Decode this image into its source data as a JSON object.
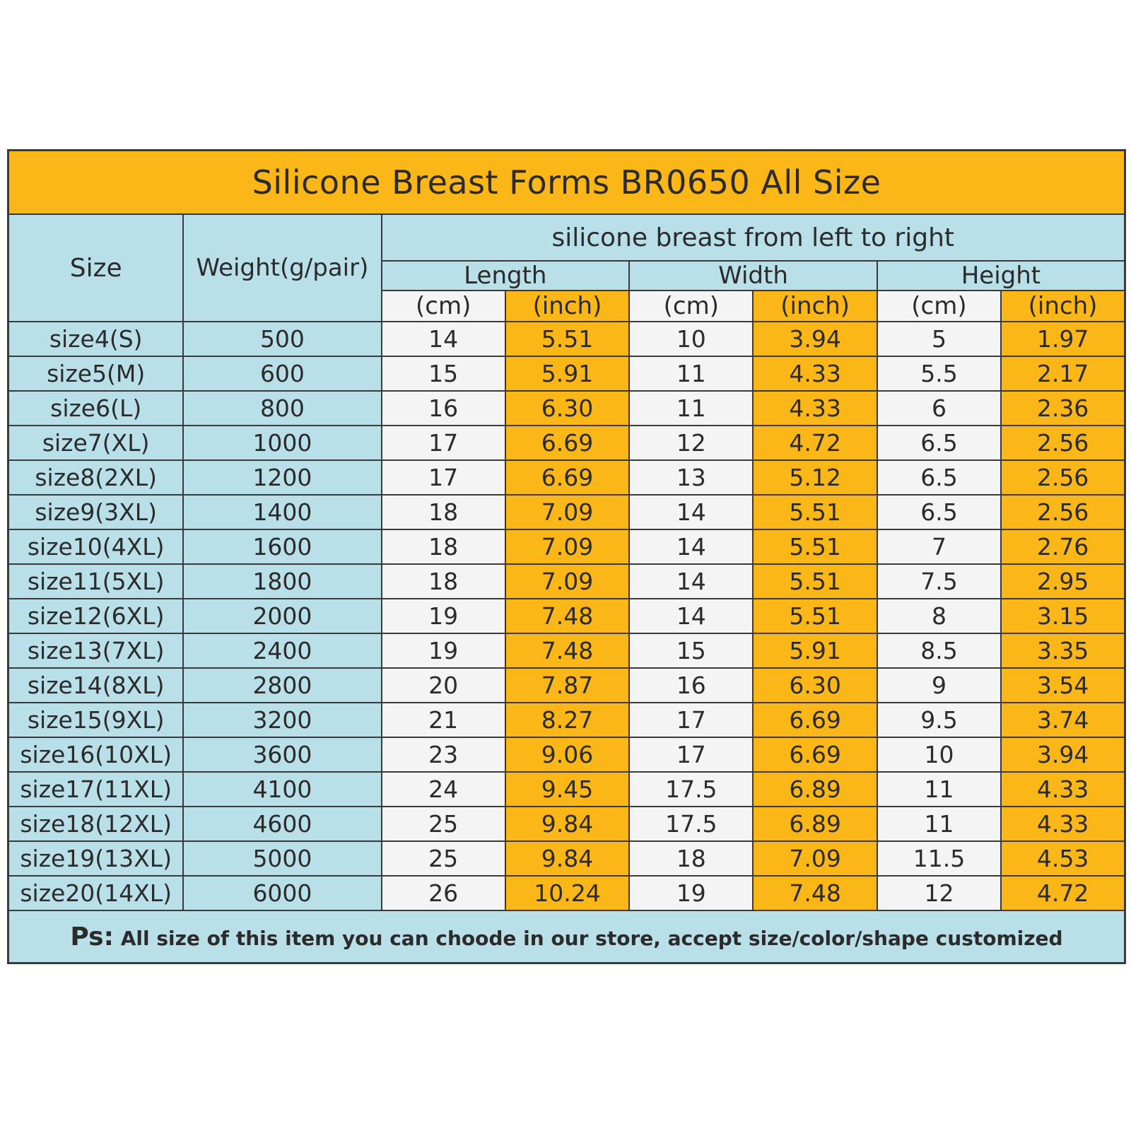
{
  "colors": {
    "title_bg": "#fbb717",
    "header_bg": "#b9dfe9",
    "size_col_bg": "#b9dfe9",
    "cm_bg": "#f4f4f4",
    "inch_bg": "#fbb717",
    "border": "#3a3a3a",
    "note_bg": "#b9dfe9"
  },
  "table": {
    "title": "Silicone Breast Forms BR0650 All Size",
    "header": {
      "size": "Size",
      "weight": "Weight(g/pair)",
      "group": "silicone breast from left to right",
      "dimensions": [
        "Length",
        "Width",
        "Height"
      ],
      "units": [
        "(cm)",
        "(inch)",
        "(cm)",
        "(inch)",
        "(cm)",
        "(inch)"
      ]
    },
    "rows": [
      [
        "size4(S)",
        "500",
        "14",
        "5.51",
        "10",
        "3.94",
        "5",
        "1.97"
      ],
      [
        "size5(M)",
        "600",
        "15",
        "5.91",
        "11",
        "4.33",
        "5.5",
        "2.17"
      ],
      [
        "size6(L)",
        "800",
        "16",
        "6.30",
        "11",
        "4.33",
        "6",
        "2.36"
      ],
      [
        "size7(XL)",
        "1000",
        "17",
        "6.69",
        "12",
        "4.72",
        "6.5",
        "2.56"
      ],
      [
        "size8(2XL)",
        "1200",
        "17",
        "6.69",
        "13",
        "5.12",
        "6.5",
        "2.56"
      ],
      [
        "size9(3XL)",
        "1400",
        "18",
        "7.09",
        "14",
        "5.51",
        "6.5",
        "2.56"
      ],
      [
        "size10(4XL)",
        "1600",
        "18",
        "7.09",
        "14",
        "5.51",
        "7",
        "2.76"
      ],
      [
        "size11(5XL)",
        "1800",
        "18",
        "7.09",
        "14",
        "5.51",
        "7.5",
        "2.95"
      ],
      [
        "size12(6XL)",
        "2000",
        "19",
        "7.48",
        "14",
        "5.51",
        "8",
        "3.15"
      ],
      [
        "size13(7XL)",
        "2400",
        "19",
        "7.48",
        "15",
        "5.91",
        "8.5",
        "3.35"
      ],
      [
        "size14(8XL)",
        "2800",
        "20",
        "7.87",
        "16",
        "6.30",
        "9",
        "3.54"
      ],
      [
        "size15(9XL)",
        "3200",
        "21",
        "8.27",
        "17",
        "6.69",
        "9.5",
        "3.74"
      ],
      [
        "size16(10XL)",
        "3600",
        "23",
        "9.06",
        "17",
        "6.69",
        "10",
        "3.94"
      ],
      [
        "size17(11XL)",
        "4100",
        "24",
        "9.45",
        "17.5",
        "6.89",
        "11",
        "4.33"
      ],
      [
        "size18(12XL)",
        "4600",
        "25",
        "9.84",
        "17.5",
        "6.89",
        "11",
        "4.33"
      ],
      [
        "size19(13XL)",
        "5000",
        "25",
        "9.84",
        "18",
        "7.09",
        "11.5",
        "4.53"
      ],
      [
        "size20(14XL)",
        "6000",
        "26",
        "10.24",
        "19",
        "7.48",
        "12",
        "4.72"
      ]
    ],
    "note": {
      "prefix": "Ps:",
      "text": "All size of this item you can choode in our store, accept size/color/shape customized"
    }
  }
}
